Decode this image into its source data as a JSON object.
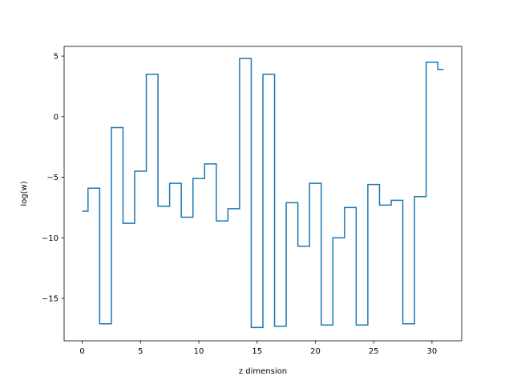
{
  "chart_data": {
    "type": "line",
    "drawstyle": "steps-mid",
    "xlabel": "z dimension",
    "ylabel": "log(w)",
    "xlim": [
      -1.55,
      32.55
    ],
    "ylim": [
      -18.5,
      5.8
    ],
    "xticks": [
      0,
      5,
      10,
      15,
      20,
      25,
      30
    ],
    "yticks": [
      -15,
      -10,
      -5,
      0,
      5
    ],
    "xtick_labels": [
      "0",
      "5",
      "10",
      "15",
      "20",
      "25",
      "30"
    ],
    "ytick_labels": [
      "−15",
      "−10",
      "−5",
      "0",
      "5"
    ],
    "grid": false,
    "legend": "none",
    "series": [
      {
        "color": "#1f77b4",
        "x": [
          0,
          1,
          2,
          3,
          4,
          5,
          6,
          7,
          8,
          9,
          10,
          11,
          12,
          13,
          14,
          15,
          16,
          17,
          18,
          19,
          20,
          21,
          22,
          23,
          24,
          25,
          26,
          27,
          28,
          29,
          30,
          31
        ],
        "y": [
          -7.8,
          -5.9,
          -17.1,
          -0.9,
          -8.8,
          -4.5,
          3.5,
          -7.4,
          -5.5,
          -8.3,
          -5.1,
          -3.9,
          -8.6,
          -7.6,
          4.8,
          -17.4,
          3.5,
          -17.3,
          -7.1,
          -10.7,
          -5.5,
          -17.2,
          -10.0,
          -7.5,
          -17.2,
          -5.6,
          -7.3,
          -6.9,
          -17.1,
          -6.6,
          4.5,
          3.9
        ]
      }
    ]
  }
}
